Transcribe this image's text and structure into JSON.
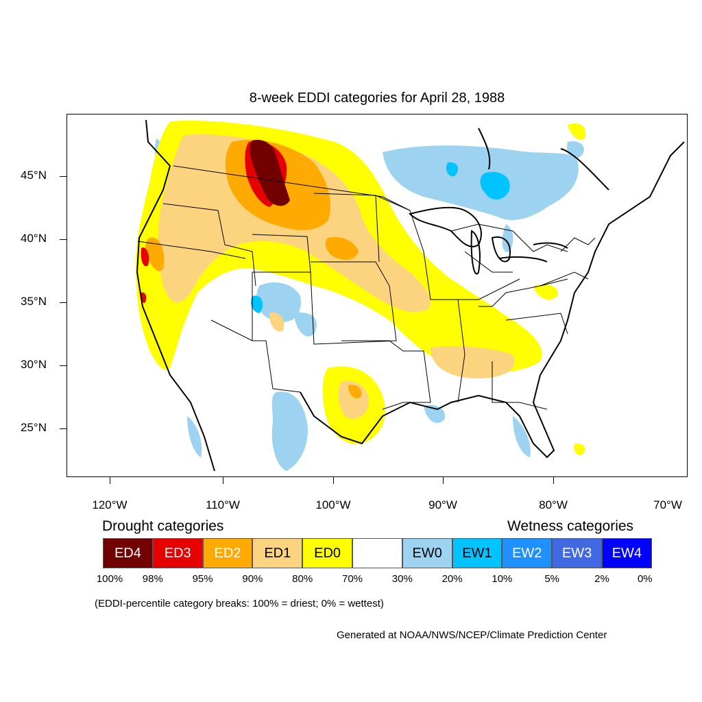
{
  "title": "8-week EDDI categories for April 28, 1988",
  "lat_labels": [
    "45°N",
    "40°N",
    "35°N",
    "30°N",
    "25°N"
  ],
  "lon_labels": [
    "120°W",
    "110°W",
    "100°W",
    "90°W",
    "80°W",
    "70°W"
  ],
  "drought_heading": "Drought categories",
  "wetness_heading": "Wetness categories",
  "legend": [
    {
      "label": "ED4",
      "color": "#730000",
      "text_color": "#ffffff"
    },
    {
      "label": "ED3",
      "color": "#e60000",
      "text_color": "#ffffff"
    },
    {
      "label": "ED2",
      "color": "#ffaa00",
      "text_color": "#ffffff"
    },
    {
      "label": "ED1",
      "color": "#fcd37f",
      "text_color": "#000000"
    },
    {
      "label": "ED0",
      "color": "#ffff00",
      "text_color": "#000000"
    },
    {
      "label": "",
      "color": "#ffffff",
      "text_color": "#000000"
    },
    {
      "label": "EW0",
      "color": "#9dd3f0",
      "text_color": "#000000"
    },
    {
      "label": "EW1",
      "color": "#00c3ff",
      "text_color": "#000000"
    },
    {
      "label": "EW2",
      "color": "#1e90ff",
      "text_color": "#ffffff"
    },
    {
      "label": "EW3",
      "color": "#4169e1",
      "text_color": "#ffffff"
    },
    {
      "label": "EW4",
      "color": "#0000ff",
      "text_color": "#ffffff"
    }
  ],
  "percent_breaks": [
    "100%",
    "98%",
    "95%",
    "90%",
    "80%",
    "70%",
    "30%",
    "20%",
    "10%",
    "5%",
    "2%",
    "0%"
  ],
  "note": "(EDDI-percentile category breaks: 100% = driest; 0% = wettest)",
  "credit": "Generated at NOAA/NWS/NCEP/Climate Prediction Center"
}
